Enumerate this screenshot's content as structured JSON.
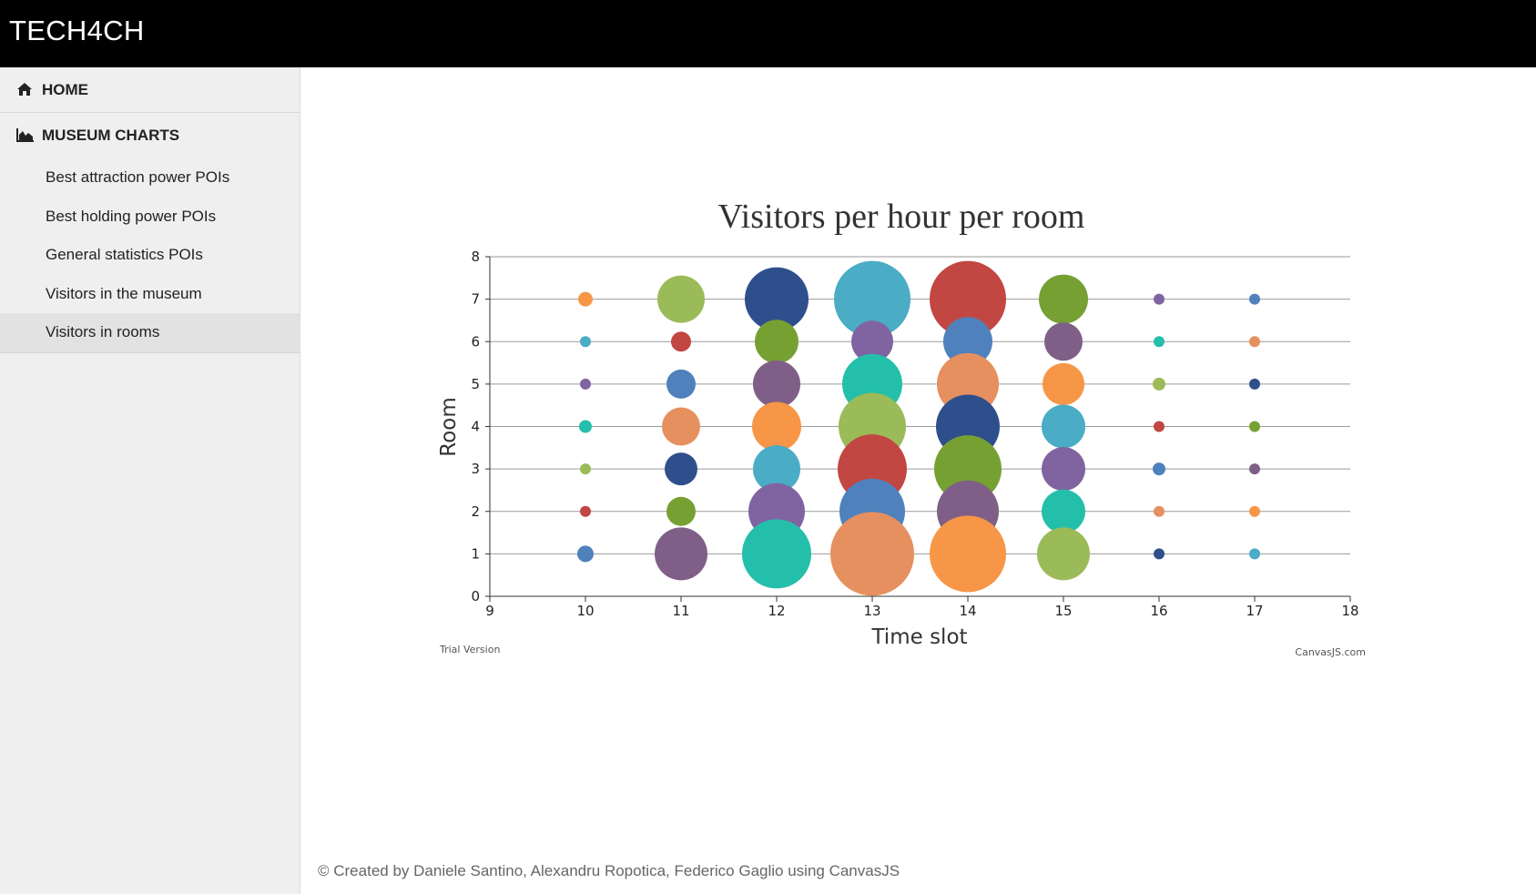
{
  "header": {
    "brand": "TECH4CH"
  },
  "sidebar": {
    "home_label": "HOME",
    "home_icon": "home-icon",
    "section_label": "MUSEUM CHARTS",
    "section_icon": "area-chart-icon",
    "items": [
      {
        "label": "Best attraction power POIs",
        "active": false
      },
      {
        "label": "Best holding power POIs",
        "active": false
      },
      {
        "label": "General statistics POIs",
        "active": false
      },
      {
        "label": "Visitors in the museum",
        "active": false
      },
      {
        "label": "Visitors in rooms",
        "active": true
      }
    ]
  },
  "chart_data": {
    "type": "scatter",
    "title": "Visitors per hour per room",
    "xlabel": "Time slot",
    "ylabel": "Room",
    "xlim": [
      9,
      18
    ],
    "ylim": [
      0,
      8
    ],
    "x_ticks": [
      9,
      10,
      11,
      12,
      13,
      14,
      15,
      16,
      17,
      18
    ],
    "y_ticks": [
      0,
      1,
      2,
      3,
      4,
      5,
      6,
      7,
      8
    ],
    "grid": "horizontal",
    "legend": "none",
    "watermark_left": "Trial Version",
    "watermark_right": "CanvasJS.com",
    "bubble_unit": "relative visitor count (radius)",
    "points": [
      {
        "x": 10,
        "y": 7,
        "r": 8,
        "color": "#F79647"
      },
      {
        "x": 10,
        "y": 6,
        "r": 6,
        "color": "#4AACC5"
      },
      {
        "x": 10,
        "y": 5,
        "r": 6,
        "color": "#8064A1"
      },
      {
        "x": 10,
        "y": 4,
        "r": 7,
        "color": "#23BFAA"
      },
      {
        "x": 10,
        "y": 3,
        "r": 6,
        "color": "#9BBB58"
      },
      {
        "x": 10,
        "y": 2,
        "r": 6,
        "color": "#C24642"
      },
      {
        "x": 10,
        "y": 1,
        "r": 9,
        "color": "#4F81BC"
      },
      {
        "x": 11,
        "y": 7,
        "r": 26,
        "color": "#9BBB58"
      },
      {
        "x": 11,
        "y": 6,
        "r": 11,
        "color": "#C24642"
      },
      {
        "x": 11,
        "y": 5,
        "r": 16,
        "color": "#4F81BC"
      },
      {
        "x": 11,
        "y": 4,
        "r": 21,
        "color": "#E6905F"
      },
      {
        "x": 11,
        "y": 3,
        "r": 18,
        "color": "#2F4F8C"
      },
      {
        "x": 11,
        "y": 2,
        "r": 16,
        "color": "#77A033"
      },
      {
        "x": 11,
        "y": 1,
        "r": 29,
        "color": "#7F5F87"
      },
      {
        "x": 12,
        "y": 7,
        "r": 35,
        "color": "#2F4F8C"
      },
      {
        "x": 12,
        "y": 6,
        "r": 24,
        "color": "#77A033"
      },
      {
        "x": 12,
        "y": 5,
        "r": 26,
        "color": "#7F5F87"
      },
      {
        "x": 12,
        "y": 4,
        "r": 27,
        "color": "#F79647"
      },
      {
        "x": 12,
        "y": 3,
        "r": 26,
        "color": "#4AACC5"
      },
      {
        "x": 12,
        "y": 2,
        "r": 31,
        "color": "#8064A1"
      },
      {
        "x": 12,
        "y": 1,
        "r": 38,
        "color": "#23BFAA"
      },
      {
        "x": 13,
        "y": 7,
        "r": 42,
        "color": "#4AACC5"
      },
      {
        "x": 13,
        "y": 6,
        "r": 23,
        "color": "#8064A1"
      },
      {
        "x": 13,
        "y": 5,
        "r": 33,
        "color": "#23BFAA"
      },
      {
        "x": 13,
        "y": 4,
        "r": 37,
        "color": "#9BBB58"
      },
      {
        "x": 13,
        "y": 3,
        "r": 38,
        "color": "#C24642"
      },
      {
        "x": 13,
        "y": 2,
        "r": 36,
        "color": "#4F81BC"
      },
      {
        "x": 13,
        "y": 1,
        "r": 46,
        "color": "#E6905F"
      },
      {
        "x": 14,
        "y": 7,
        "r": 42,
        "color": "#C24642"
      },
      {
        "x": 14,
        "y": 6,
        "r": 27,
        "color": "#4F81BC"
      },
      {
        "x": 14,
        "y": 5,
        "r": 34,
        "color": "#E6905F"
      },
      {
        "x": 14,
        "y": 4,
        "r": 35,
        "color": "#2F4F8C"
      },
      {
        "x": 14,
        "y": 3,
        "r": 37,
        "color": "#77A033"
      },
      {
        "x": 14,
        "y": 2,
        "r": 34,
        "color": "#7F5F87"
      },
      {
        "x": 14,
        "y": 1,
        "r": 42,
        "color": "#F79647"
      },
      {
        "x": 15,
        "y": 7,
        "r": 27,
        "color": "#77A033"
      },
      {
        "x": 15,
        "y": 6,
        "r": 21,
        "color": "#7F5F87"
      },
      {
        "x": 15,
        "y": 5,
        "r": 23,
        "color": "#F79647"
      },
      {
        "x": 15,
        "y": 4,
        "r": 24,
        "color": "#4AACC5"
      },
      {
        "x": 15,
        "y": 3,
        "r": 24,
        "color": "#8064A1"
      },
      {
        "x": 15,
        "y": 2,
        "r": 24,
        "color": "#23BFAA"
      },
      {
        "x": 15,
        "y": 1,
        "r": 29,
        "color": "#9BBB58"
      },
      {
        "x": 16,
        "y": 7,
        "r": 6,
        "color": "#8064A1"
      },
      {
        "x": 16,
        "y": 6,
        "r": 6,
        "color": "#23BFAA"
      },
      {
        "x": 16,
        "y": 5,
        "r": 7,
        "color": "#9BBB58"
      },
      {
        "x": 16,
        "y": 4,
        "r": 6,
        "color": "#C24642"
      },
      {
        "x": 16,
        "y": 3,
        "r": 7,
        "color": "#4F81BC"
      },
      {
        "x": 16,
        "y": 2,
        "r": 6,
        "color": "#E6905F"
      },
      {
        "x": 16,
        "y": 1,
        "r": 6,
        "color": "#2F4F8C"
      },
      {
        "x": 17,
        "y": 7,
        "r": 6,
        "color": "#4F81BC"
      },
      {
        "x": 17,
        "y": 6,
        "r": 6,
        "color": "#E6905F"
      },
      {
        "x": 17,
        "y": 5,
        "r": 6,
        "color": "#2F4F8C"
      },
      {
        "x": 17,
        "y": 4,
        "r": 6,
        "color": "#77A033"
      },
      {
        "x": 17,
        "y": 3,
        "r": 6,
        "color": "#7F5F87"
      },
      {
        "x": 17,
        "y": 2,
        "r": 6,
        "color": "#F79647"
      },
      {
        "x": 17,
        "y": 1,
        "r": 6,
        "color": "#4AACC5"
      }
    ]
  },
  "footer": {
    "text": "© Created by Daniele Santino, Alexandru Ropotica, Federico Gaglio using CanvasJS"
  }
}
